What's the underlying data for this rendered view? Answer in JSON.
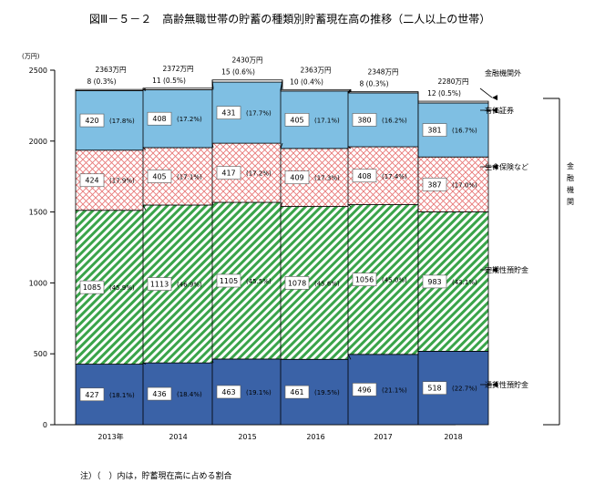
{
  "chart_data": {
    "type": "bar",
    "stacked": true,
    "title": "図Ⅲ－５－２　高齢無職世帯の貯蓄の種類別貯蓄現在高の推移（二人以上の世帯）",
    "ylabel": "(万円)",
    "ylim": [
      0,
      2500
    ],
    "yticks": [
      "0",
      "500",
      "1000",
      "1500",
      "2000",
      "2500"
    ],
    "categories": [
      "2013年",
      "2014",
      "2015",
      "2016",
      "2017",
      "2018"
    ],
    "totals": [
      "2363万円",
      "2372万円",
      "2430万円",
      "2363万円",
      "2348万円",
      "2280万円"
    ],
    "series": [
      {
        "name": "通貨性預貯金",
        "values": [
          427,
          436,
          463,
          461,
          496,
          518
        ],
        "pct": [
          "(18.1%)",
          "(18.4%)",
          "(19.1%)",
          "(19.5%)",
          "(21.1%)",
          "(22.7%)"
        ],
        "color": "#3a62a7"
      },
      {
        "name": "定期性預貯金",
        "values": [
          1085,
          1113,
          1105,
          1078,
          1056,
          983
        ],
        "pct": [
          "(45.9%)",
          "(46.9%)",
          "(45.5%)",
          "(45.6%)",
          "(45.0%)",
          "(43.1%)"
        ],
        "color": "#3aa44a"
      },
      {
        "name": "生命保険など",
        "values": [
          424,
          405,
          417,
          409,
          408,
          387
        ],
        "pct": [
          "(17.9%)",
          "(17.1%)",
          "(17.2%)",
          "(17.3%)",
          "(17.4%)",
          "(17.0%)"
        ],
        "color": "#e87878"
      },
      {
        "name": "有価証券",
        "values": [
          420,
          408,
          431,
          405,
          380,
          381
        ],
        "pct": [
          "(17.8%)",
          "(17.2%)",
          "(17.7%)",
          "(17.1%)",
          "(16.2%)",
          "(16.7%)"
        ],
        "color": "#7fbfe3"
      },
      {
        "name": "金融機関外",
        "values": [
          8,
          11,
          15,
          10,
          8,
          12
        ],
        "pct": [
          "(0.3%)",
          "(0.5%)",
          "(0.6%)",
          "(0.4%)",
          "(0.3%)",
          "(0.5%)"
        ],
        "color": "#ffffff"
      }
    ],
    "bracket_label": "金融機関",
    "note": "注）（　）内は，貯蓄現在高に占める割合",
    "grid": false,
    "legend": "right"
  }
}
